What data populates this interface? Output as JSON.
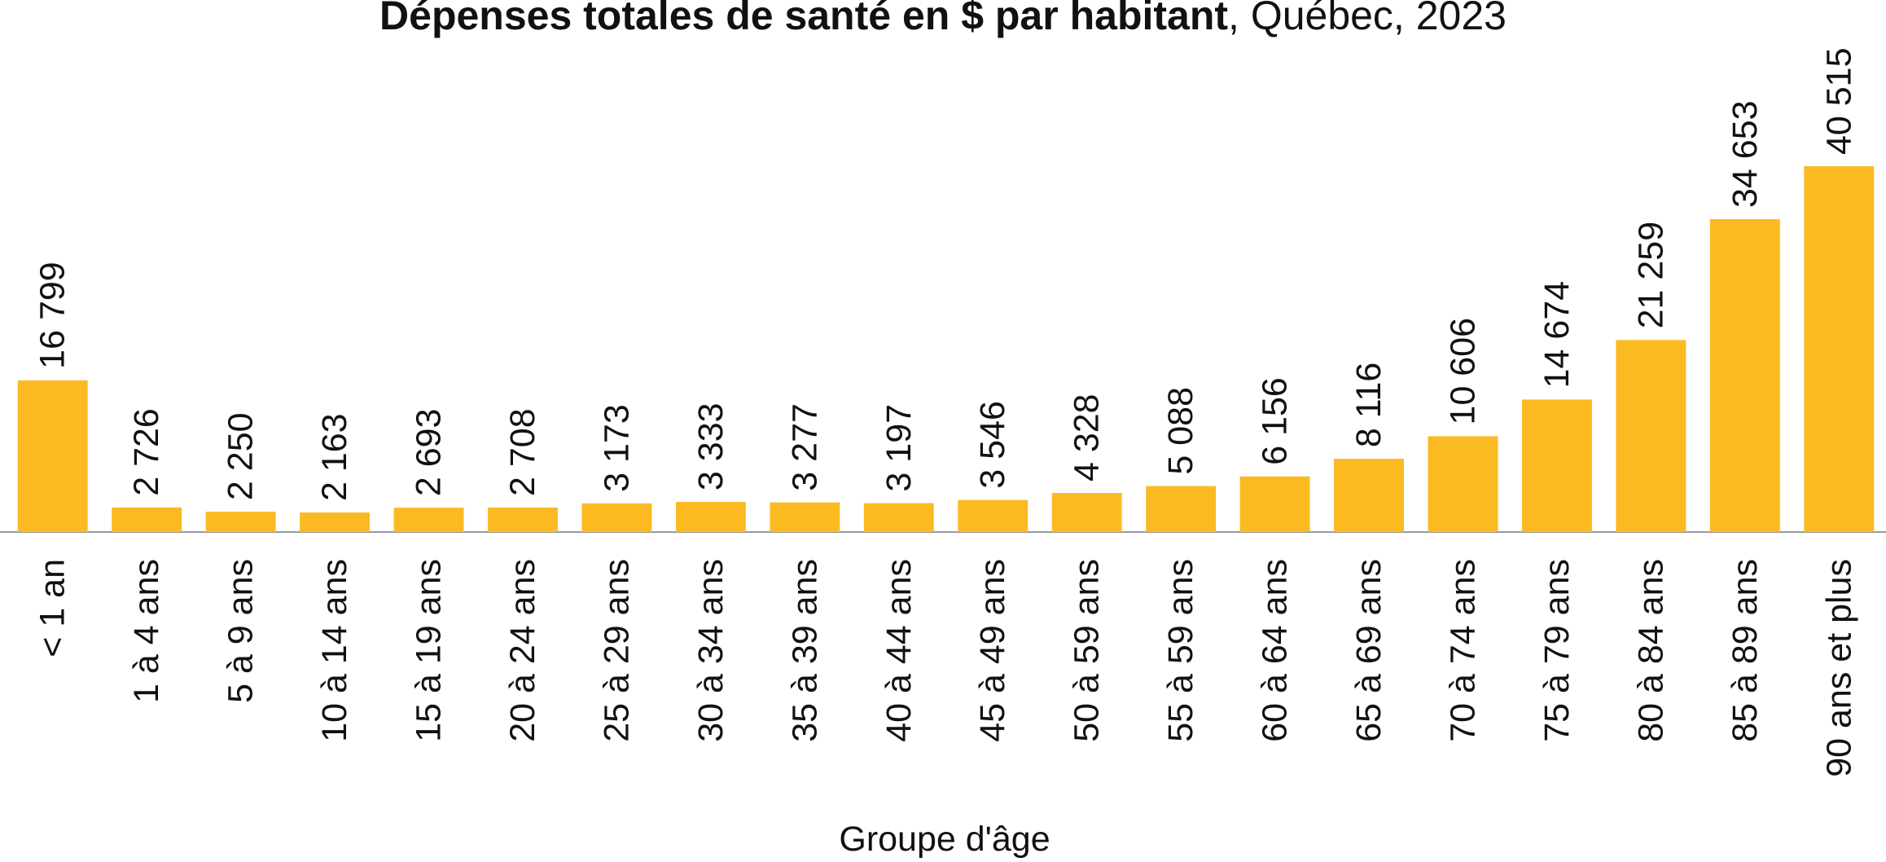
{
  "chart_data": {
    "type": "bar",
    "title": "Dépenses totales de santé en $ par habitant",
    "title_suffix": ", Québec, 2023",
    "x_label": "Groupe d'âge",
    "color": "#fbba22",
    "categories": [
      "< 1 an",
      "1 à 4 ans",
      "5 à 9 ans",
      "10 à 14 ans",
      "15 à 19 ans",
      "20 à 24 ans",
      "25 à 29 ans",
      "30 à 34 ans",
      "35 à 39 ans",
      "40 à 44 ans",
      "45 à 49 ans",
      "50 à 59 ans",
      "55 à 59 ans",
      "60 à 64 ans",
      "65 à 69 ans",
      "70 à 74 ans",
      "75 à 79 ans",
      "80 à 84 ans",
      "85 à 89 ans",
      "90 ans et plus"
    ],
    "values": [
      16799,
      2726,
      2250,
      2163,
      2693,
      2708,
      3173,
      3333,
      3277,
      3197,
      3546,
      4328,
      5088,
      6156,
      8116,
      10606,
      14674,
      21259,
      34653,
      40515
    ],
    "value_labels": [
      "16 799",
      "2 726",
      "2 250",
      "2 163",
      "2 693",
      "2 708",
      "3 173",
      "3 333",
      "3 277",
      "3 197",
      "3 546",
      "4 328",
      "5 088",
      "6 156",
      "8 116",
      "10 606",
      "14 674",
      "21 259",
      "34 653",
      "40 515"
    ]
  }
}
